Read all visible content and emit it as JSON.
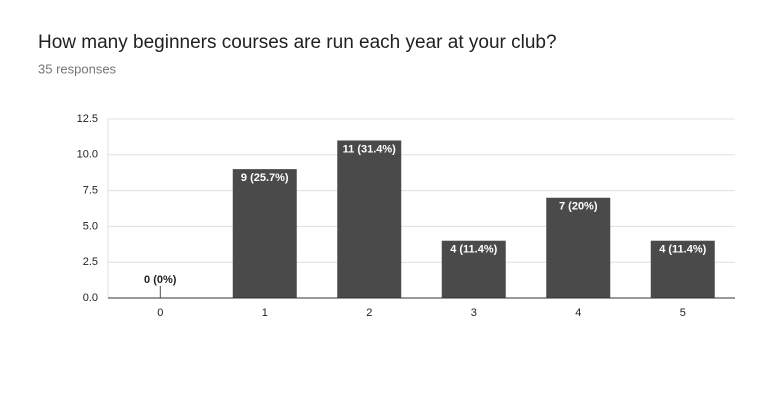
{
  "chart_data": {
    "type": "bar",
    "title": "How many beginners courses are run each year at your club?",
    "subtitle": "35 responses",
    "categories": [
      "0",
      "1",
      "2",
      "3",
      "4",
      "5"
    ],
    "values": [
      0,
      9,
      11,
      4,
      7,
      4
    ],
    "value_labels": [
      "0 (0%)",
      "9 (25.7%)",
      "11 (31.4%)",
      "4 (11.4%)",
      "7 (20%)",
      "4 (11.4%)"
    ],
    "color": "#4a4a4a",
    "ylim": [
      0,
      12.5
    ],
    "yticks": [
      {
        "value": 0,
        "label": "0.0"
      },
      2.5,
      {
        "value": 5,
        "label": "5.0"
      },
      7.5,
      {
        "value": 10,
        "label": "10.0"
      },
      12.5
    ],
    "grid": true
  }
}
